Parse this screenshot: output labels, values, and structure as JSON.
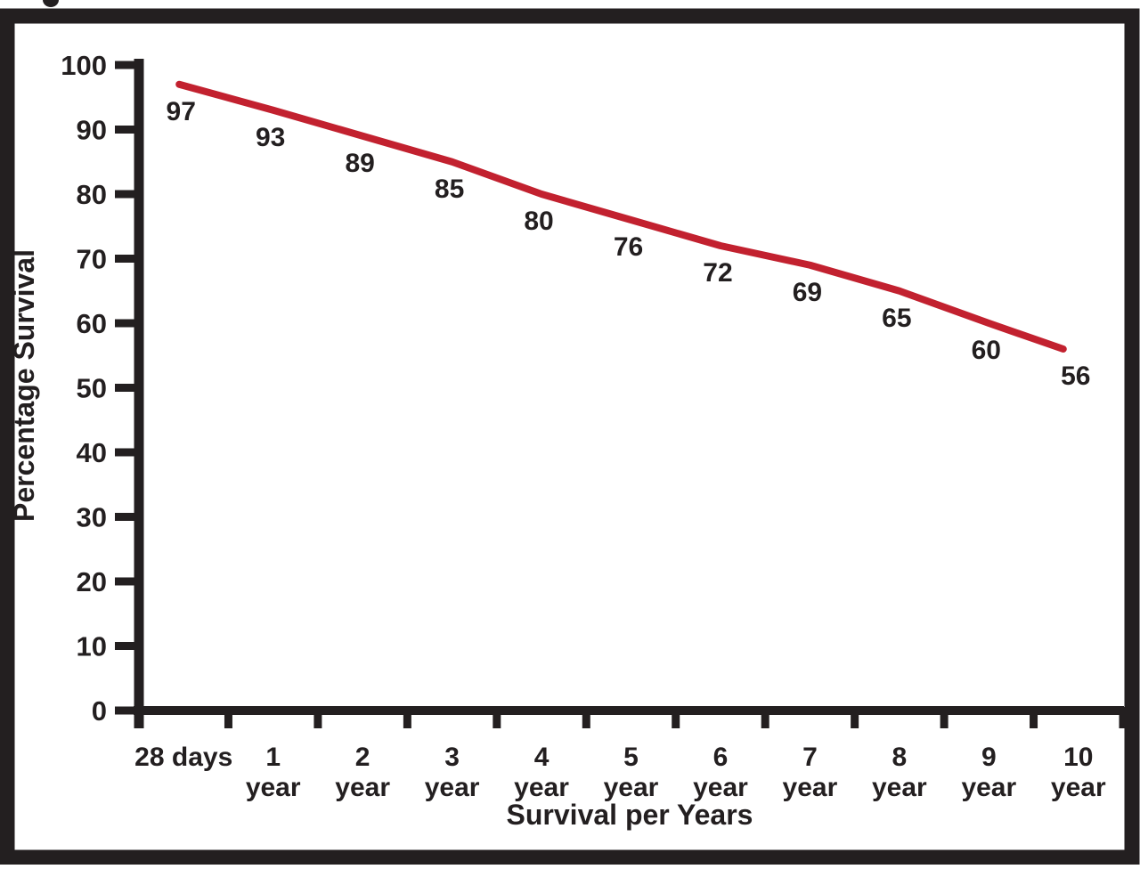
{
  "figure": {
    "background_color": "#ffffff",
    "frame_color": "#231f20",
    "cropped_text_fragment": "partial glyph descender above frame (cut-off caption)"
  },
  "chart_data": {
    "type": "line",
    "title": "",
    "xlabel": "Survival per Years",
    "ylabel": "Percentage Survival",
    "categories": [
      "28 days",
      "1 year",
      "2 year",
      "3 year",
      "4 year",
      "5 year",
      "6 year",
      "7 year",
      "8 year",
      "9 year",
      "10 year"
    ],
    "category_label_lines": [
      [
        "28 days"
      ],
      [
        "1",
        "year"
      ],
      [
        "2",
        "year"
      ],
      [
        "3",
        "year"
      ],
      [
        "4",
        "year"
      ],
      [
        "5",
        "year"
      ],
      [
        "6",
        "year"
      ],
      [
        "7",
        "year"
      ],
      [
        "8",
        "year"
      ],
      [
        "9",
        "year"
      ],
      [
        "10",
        "year"
      ]
    ],
    "values": [
      97,
      93,
      89,
      85,
      80,
      76,
      72,
      69,
      65,
      60,
      56
    ],
    "point_labels": [
      "97",
      "93",
      "89",
      "85",
      "80",
      "76",
      "72",
      "69",
      "65",
      "60",
      "56"
    ],
    "y_ticks": [
      0,
      10,
      20,
      30,
      40,
      50,
      60,
      70,
      80,
      90,
      100
    ],
    "ylim": [
      0,
      100
    ],
    "grid": false,
    "legend": false,
    "line_color": "#c2212f",
    "axis_color": "#231f20",
    "label_color": "#231f20"
  }
}
